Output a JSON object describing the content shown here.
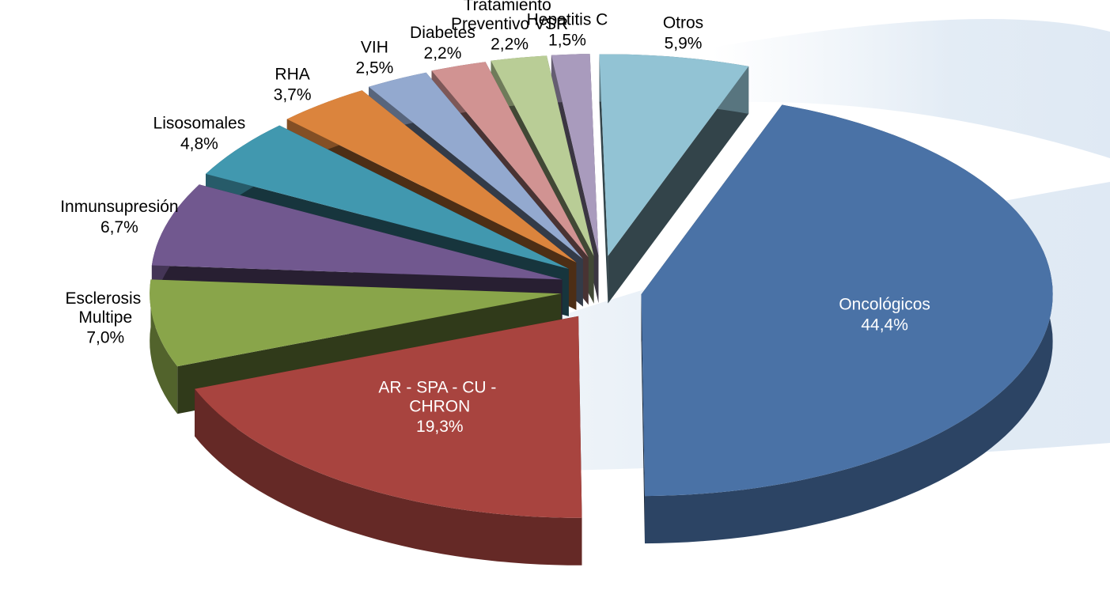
{
  "chart_data": {
    "type": "pie",
    "categories": [
      "Oncológicos",
      "AR - SPA - CU - CHRON",
      "Esclerosis Multipe",
      "Inmunsupresión",
      "Lisosomales",
      "RHA",
      "VIH",
      "Diabetes",
      "Tratamiento Preventivo VSR",
      "Hepatitis C",
      "Otros"
    ],
    "values": [
      44.4,
      19.3,
      7.0,
      6.7,
      4.8,
      3.7,
      2.5,
      2.2,
      2.2,
      1.5,
      5.9
    ],
    "value_labels": [
      "44,4%",
      "19,3%",
      "7,0%",
      "6,7%",
      "4,8%",
      "3,7%",
      "2,5%",
      "2,2%",
      "2,2%",
      "1,5%",
      "5,9%"
    ],
    "colors": [
      "#4a72a6",
      "#a8443f",
      "#89a54a",
      "#71588f",
      "#4198af",
      "#db843d",
      "#93a9cf",
      "#d19392",
      "#b9cd96",
      "#a99bbd",
      "#92c3d4"
    ]
  }
}
